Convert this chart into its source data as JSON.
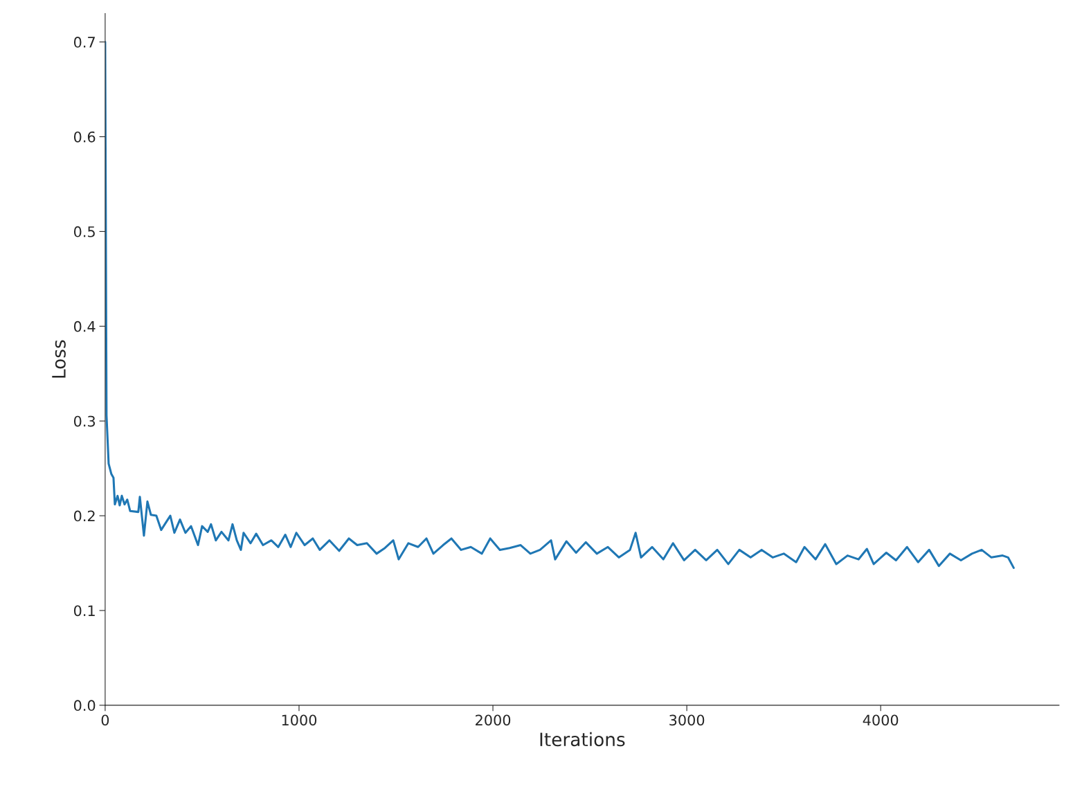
{
  "chart_data": {
    "type": "line",
    "xlabel": "Iterations",
    "ylabel": "Loss",
    "xlim": [
      0,
      4920
    ],
    "ylim": [
      0,
      0.73
    ],
    "xticks": [
      0,
      1000,
      2000,
      3000,
      4000
    ],
    "yticks": [
      {
        "value": 0,
        "label": "0.0"
      },
      0.1,
      0.2,
      0.3,
      0.4,
      0.5,
      0.6,
      0.7
    ],
    "grid": false,
    "legend": false,
    "series": [
      {
        "color": "#1f77b4",
        "x": [
          0,
          7,
          18,
          32,
          43,
          50,
          64,
          75,
          86,
          100,
          114,
          129,
          171,
          179,
          200,
          218,
          236,
          264,
          289,
          314,
          336,
          357,
          386,
          414,
          443,
          479,
          500,
          529,
          546,
          571,
          600,
          636,
          657,
          679,
          700,
          714,
          750,
          779,
          814,
          857,
          893,
          929,
          957,
          986,
          1029,
          1071,
          1107,
          1157,
          1207,
          1257,
          1300,
          1350,
          1400,
          1443,
          1486,
          1514,
          1564,
          1614,
          1657,
          1693,
          1743,
          1786,
          1836,
          1886,
          1943,
          1986,
          2036,
          2086,
          2143,
          2193,
          2243,
          2300,
          2321,
          2379,
          2429,
          2479,
          2536,
          2593,
          2650,
          2707,
          2736,
          2764,
          2821,
          2879,
          2929,
          2986,
          3043,
          3100,
          3157,
          3214,
          3271,
          3329,
          3386,
          3443,
          3500,
          3564,
          3607,
          3664,
          3714,
          3771,
          3829,
          3886,
          3929,
          3964,
          4029,
          4079,
          4136,
          4193,
          4250,
          4300,
          4357,
          4414,
          4471,
          4521,
          4571,
          4629,
          4657,
          4686
        ],
        "values": [
          0.7,
          0.306,
          0.255,
          0.244,
          0.24,
          0.212,
          0.221,
          0.211,
          0.221,
          0.212,
          0.217,
          0.205,
          0.204,
          0.22,
          0.179,
          0.215,
          0.201,
          0.2,
          0.185,
          0.193,
          0.2,
          0.182,
          0.196,
          0.182,
          0.189,
          0.169,
          0.189,
          0.183,
          0.191,
          0.174,
          0.183,
          0.174,
          0.191,
          0.174,
          0.164,
          0.182,
          0.171,
          0.181,
          0.169,
          0.174,
          0.167,
          0.18,
          0.167,
          0.182,
          0.169,
          0.176,
          0.164,
          0.174,
          0.163,
          0.176,
          0.169,
          0.171,
          0.16,
          0.166,
          0.174,
          0.154,
          0.171,
          0.167,
          0.176,
          0.16,
          0.169,
          0.176,
          0.164,
          0.167,
          0.16,
          0.176,
          0.164,
          0.166,
          0.169,
          0.16,
          0.164,
          0.174,
          0.154,
          0.173,
          0.161,
          0.172,
          0.16,
          0.167,
          0.156,
          0.164,
          0.182,
          0.156,
          0.167,
          0.154,
          0.171,
          0.153,
          0.164,
          0.153,
          0.164,
          0.149,
          0.164,
          0.156,
          0.164,
          0.156,
          0.16,
          0.151,
          0.167,
          0.154,
          0.17,
          0.149,
          0.158,
          0.154,
          0.165,
          0.149,
          0.161,
          0.153,
          0.167,
          0.151,
          0.164,
          0.147,
          0.16,
          0.153,
          0.16,
          0.164,
          0.156,
          0.158,
          0.156,
          0.145
        ]
      }
    ]
  }
}
